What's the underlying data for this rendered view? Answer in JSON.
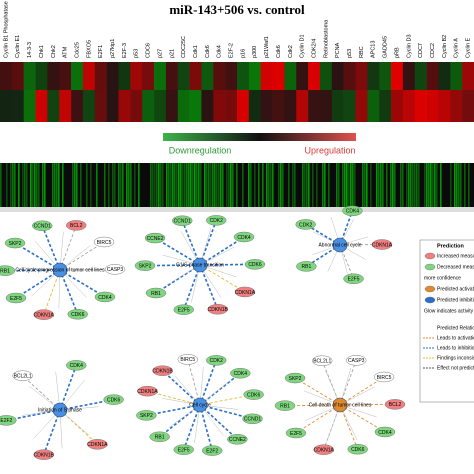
{
  "header": {
    "title": "miR-143+506 vs. control"
  },
  "columns": [
    "Cyclin B1 Phosphatase",
    "Cyclin E1",
    "14-3-3",
    "Chk1",
    "Chk2",
    "ATM",
    "Cdc25",
    "FBXO5",
    "E2F1",
    "p27kip1",
    "E2F-3",
    "p53",
    "CDC6",
    "p27",
    "p21",
    "CDC25C",
    "Cdk1",
    "Cdk6",
    "Cdk4",
    "E2F-2",
    "p16",
    "p300",
    "p21Waf1",
    "Cdk6",
    "Cdk2",
    "Cyclin D1",
    "CDK2/4",
    "Retinoblastoma",
    "PCNA",
    "p53",
    "RBC",
    "APC13",
    "GADD45",
    "pRB",
    "Cyclin D3",
    "CDC7",
    "CDC2",
    "Cyclin B2",
    "Cyclin A",
    "Cyclin E"
  ],
  "scale": {
    "low": "Downregulation",
    "high": "Upregulation",
    "low_color": "#2e9a3a",
    "high_color": "#d33a3a"
  },
  "panels": [
    {
      "center": "Cell cycle progression of tumor cell lines",
      "nodes": [
        {
          "label": "BCL2",
          "color": "#f08080",
          "edge": "#999999"
        },
        {
          "label": "BIRC5",
          "color": "#ffffff",
          "edge": "#999999"
        },
        {
          "label": "CASP3",
          "color": "#ffffff",
          "edge": "#999999"
        },
        {
          "label": "CDK4",
          "color": "#7fd67f",
          "edge": "#2a6fc9"
        },
        {
          "label": "CDK6",
          "color": "#7fd67f",
          "edge": "#2a6fc9"
        },
        {
          "label": "CDKN1A",
          "color": "#f08080",
          "edge": "#e0b020"
        },
        {
          "label": "E2F5",
          "color": "#7fd67f",
          "edge": "#2a6fc9"
        },
        {
          "label": "RB1",
          "color": "#7fd67f",
          "edge": "#2a6fc9"
        },
        {
          "label": "SKP2",
          "color": "#7fd67f",
          "edge": "#2a6fc9"
        },
        {
          "label": "CCND1",
          "color": "#7fd67f",
          "edge": "#2a6fc9"
        }
      ]
    },
    {
      "center": "G1/S phase transition",
      "nodes": [
        {
          "label": "CDK2",
          "color": "#7fd67f",
          "edge": "#2a6fc9"
        },
        {
          "label": "CDK4",
          "color": "#7fd67f",
          "edge": "#2a6fc9"
        },
        {
          "label": "CDK6",
          "color": "#7fd67f",
          "edge": "#2a6fc9"
        },
        {
          "label": "CDKN1A",
          "color": "#f08080",
          "edge": "#e0b020"
        },
        {
          "label": "CDKN1B",
          "color": "#f08080",
          "edge": "#2a6fc9"
        },
        {
          "label": "E2F5",
          "color": "#7fd67f",
          "edge": "#2a6fc9"
        },
        {
          "label": "RB1",
          "color": "#7fd67f",
          "edge": "#2a6fc9"
        },
        {
          "label": "SKP2",
          "color": "#7fd67f",
          "edge": "#2a6fc9"
        },
        {
          "label": "CCNE2",
          "color": "#7fd67f",
          "edge": "#2a6fc9"
        },
        {
          "label": "CCND1",
          "color": "#7fd67f",
          "edge": "#2a6fc9"
        }
      ]
    },
    {
      "center": "Abnormal cell cycle",
      "nodes": [
        {
          "label": "CDK4",
          "color": "#7fd67f",
          "edge": "#2a6fc9"
        },
        {
          "label": "CDKN1A",
          "color": "#f08080",
          "edge": "#999999"
        },
        {
          "label": "E2F5",
          "color": "#7fd67f",
          "edge": "#999999"
        },
        {
          "label": "RB1",
          "color": "#7fd67f",
          "edge": "#2a6fc9"
        },
        {
          "label": "CDK2",
          "color": "#7fd67f",
          "edge": "#2a6fc9"
        }
      ]
    },
    {
      "center": "Initiation of S phase",
      "nodes": [
        {
          "label": "CDK4",
          "color": "#7fd67f",
          "edge": "#2a6fc9"
        },
        {
          "label": "CDK6",
          "color": "#7fd67f",
          "edge": "#2a6fc9"
        },
        {
          "label": "CDKN1A",
          "color": "#f08080",
          "edge": "#e0b020"
        },
        {
          "label": "CDKN1B",
          "color": "#f08080",
          "edge": "#2a6fc9"
        },
        {
          "label": "E2F2",
          "color": "#7fd67f",
          "edge": "#2a6fc9"
        },
        {
          "label": "BCL2L1",
          "color": "#ffffff",
          "edge": "#999999"
        }
      ]
    },
    {
      "center": "Cell cycle",
      "nodes": [
        {
          "label": "CDK2",
          "color": "#7fd67f",
          "edge": "#2a6fc9"
        },
        {
          "label": "CDK4",
          "color": "#7fd67f",
          "edge": "#2a6fc9"
        },
        {
          "label": "CDK6",
          "color": "#7fd67f",
          "edge": "#e0b020"
        },
        {
          "label": "CCND1",
          "color": "#7fd67f",
          "edge": "#2a6fc9"
        },
        {
          "label": "CCNE2",
          "color": "#7fd67f",
          "edge": "#2a6fc9"
        },
        {
          "label": "E2F2",
          "color": "#7fd67f",
          "edge": "#2a6fc9"
        },
        {
          "label": "E2F5",
          "color": "#7fd67f",
          "edge": "#2a6fc9"
        },
        {
          "label": "RB1",
          "color": "#7fd67f",
          "edge": "#2a6fc9"
        },
        {
          "label": "SKP2",
          "color": "#7fd67f",
          "edge": "#2a6fc9"
        },
        {
          "label": "CDKN1A",
          "color": "#f08080",
          "edge": "#e0b020"
        },
        {
          "label": "CDKN1B",
          "color": "#f08080",
          "edge": "#2a6fc9"
        },
        {
          "label": "BIRC5",
          "color": "#ffffff",
          "edge": "#999999"
        }
      ]
    },
    {
      "center": "Cell death of tumor cell lines",
      "nodes": [
        {
          "label": "CASP3",
          "color": "#ffffff",
          "edge": "#999999"
        },
        {
          "label": "BIRC5",
          "color": "#ffffff",
          "edge": "#e08020"
        },
        {
          "label": "BCL2",
          "color": "#f08080",
          "edge": "#e08020"
        },
        {
          "label": "CDK4",
          "color": "#7fd67f",
          "edge": "#e08020"
        },
        {
          "label": "CDK6",
          "color": "#7fd67f",
          "edge": "#e08020"
        },
        {
          "label": "CDKN1A",
          "color": "#f08080",
          "edge": "#999999"
        },
        {
          "label": "E2F5",
          "color": "#7fd67f",
          "edge": "#e08020"
        },
        {
          "label": "RB1",
          "color": "#7fd67f",
          "edge": "#e08020"
        },
        {
          "label": "SKP2",
          "color": "#7fd67f",
          "edge": "#e08020"
        },
        {
          "label": "BCL2L1",
          "color": "#ffffff",
          "edge": "#999999"
        }
      ]
    }
  ],
  "legend": {
    "title": "Prediction",
    "items": [
      "Increased measurement",
      "Decreased measurement",
      "more confidence",
      "Predicted activation",
      "Predicted inhibition",
      "Glow indicates activity when opposite of measurement"
    ],
    "relations_title": "Predicted Relationships",
    "relations": [
      "Leads to activation",
      "Leads to inhibition",
      "Findings inconsistent with state of downstream molecule",
      "Effect not predicted"
    ]
  }
}
